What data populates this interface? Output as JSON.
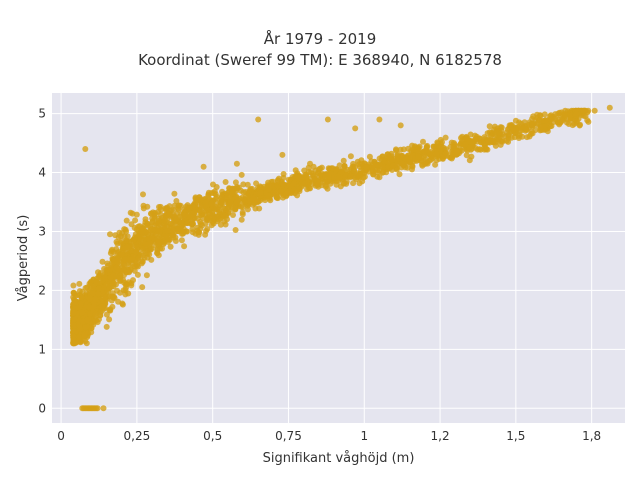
{
  "chart_data": {
    "type": "scatter",
    "title": "År 1979 - 2019",
    "subtitle": "Koordinat (Sweref 99 TM): E 368940, N 6182578",
    "xlabel": "Signifikant våghöjd (m)",
    "ylabel": "Vågperiod (s)",
    "xlim": [
      -0.03,
      1.86
    ],
    "ylim": [
      -0.25,
      5.35
    ],
    "x_ticks": [
      0,
      0.25,
      0.5,
      0.75,
      1,
      1.25,
      1.5,
      1.75
    ],
    "x_tick_labels": [
      "0",
      "0,25",
      "0,5",
      "0,75",
      "1",
      "1,2",
      "1,5",
      "1,8"
    ],
    "y_ticks": [
      0,
      1,
      2,
      3,
      4,
      5
    ],
    "y_tick_labels": [
      "0",
      "1",
      "2",
      "3",
      "4",
      "5"
    ],
    "grid": true,
    "background": "#e5e5ef",
    "marker_color": "#d4a017",
    "series": [
      {
        "trend_points": [
          [
            0.05,
            1.45
          ],
          [
            0.08,
            1.55
          ],
          [
            0.1,
            1.7
          ],
          [
            0.15,
            2.1
          ],
          [
            0.2,
            2.5
          ],
          [
            0.25,
            2.75
          ],
          [
            0.3,
            2.95
          ],
          [
            0.4,
            3.2
          ],
          [
            0.5,
            3.4
          ],
          [
            0.6,
            3.55
          ],
          [
            0.7,
            3.7
          ],
          [
            0.8,
            3.85
          ],
          [
            0.9,
            3.95
          ],
          [
            1.0,
            4.05
          ],
          [
            1.1,
            4.2
          ],
          [
            1.2,
            4.3
          ],
          [
            1.3,
            4.4
          ],
          [
            1.4,
            4.55
          ],
          [
            1.5,
            4.7
          ],
          [
            1.6,
            4.85
          ],
          [
            1.7,
            5.0
          ],
          [
            1.75,
            5.05
          ],
          [
            1.81,
            5.1
          ]
        ],
        "zero_period_points": [
          [
            0.07,
            0
          ],
          [
            0.075,
            0
          ],
          [
            0.08,
            0
          ],
          [
            0.085,
            0
          ],
          [
            0.09,
            0
          ],
          [
            0.095,
            0
          ],
          [
            0.1,
            0
          ],
          [
            0.105,
            0
          ],
          [
            0.11,
            0
          ],
          [
            0.115,
            0
          ],
          [
            0.12,
            0
          ],
          [
            0.14,
            0
          ]
        ],
        "outliers": [
          [
            0.08,
            4.4
          ],
          [
            0.65,
            4.9
          ],
          [
            0.88,
            4.9
          ],
          [
            1.05,
            4.9
          ],
          [
            0.97,
            4.75
          ],
          [
            1.12,
            4.8
          ],
          [
            0.58,
            4.15
          ],
          [
            0.47,
            4.1
          ],
          [
            0.73,
            4.3
          ],
          [
            1.66,
            5.0
          ],
          [
            1.7,
            5.0
          ],
          [
            1.73,
            5.05
          ],
          [
            1.76,
            5.05
          ],
          [
            1.81,
            5.1
          ],
          [
            1.57,
            4.98
          ],
          [
            1.5,
            4.88
          ],
          [
            1.52,
            4.78
          ],
          [
            1.44,
            4.75
          ]
        ]
      }
    ]
  }
}
